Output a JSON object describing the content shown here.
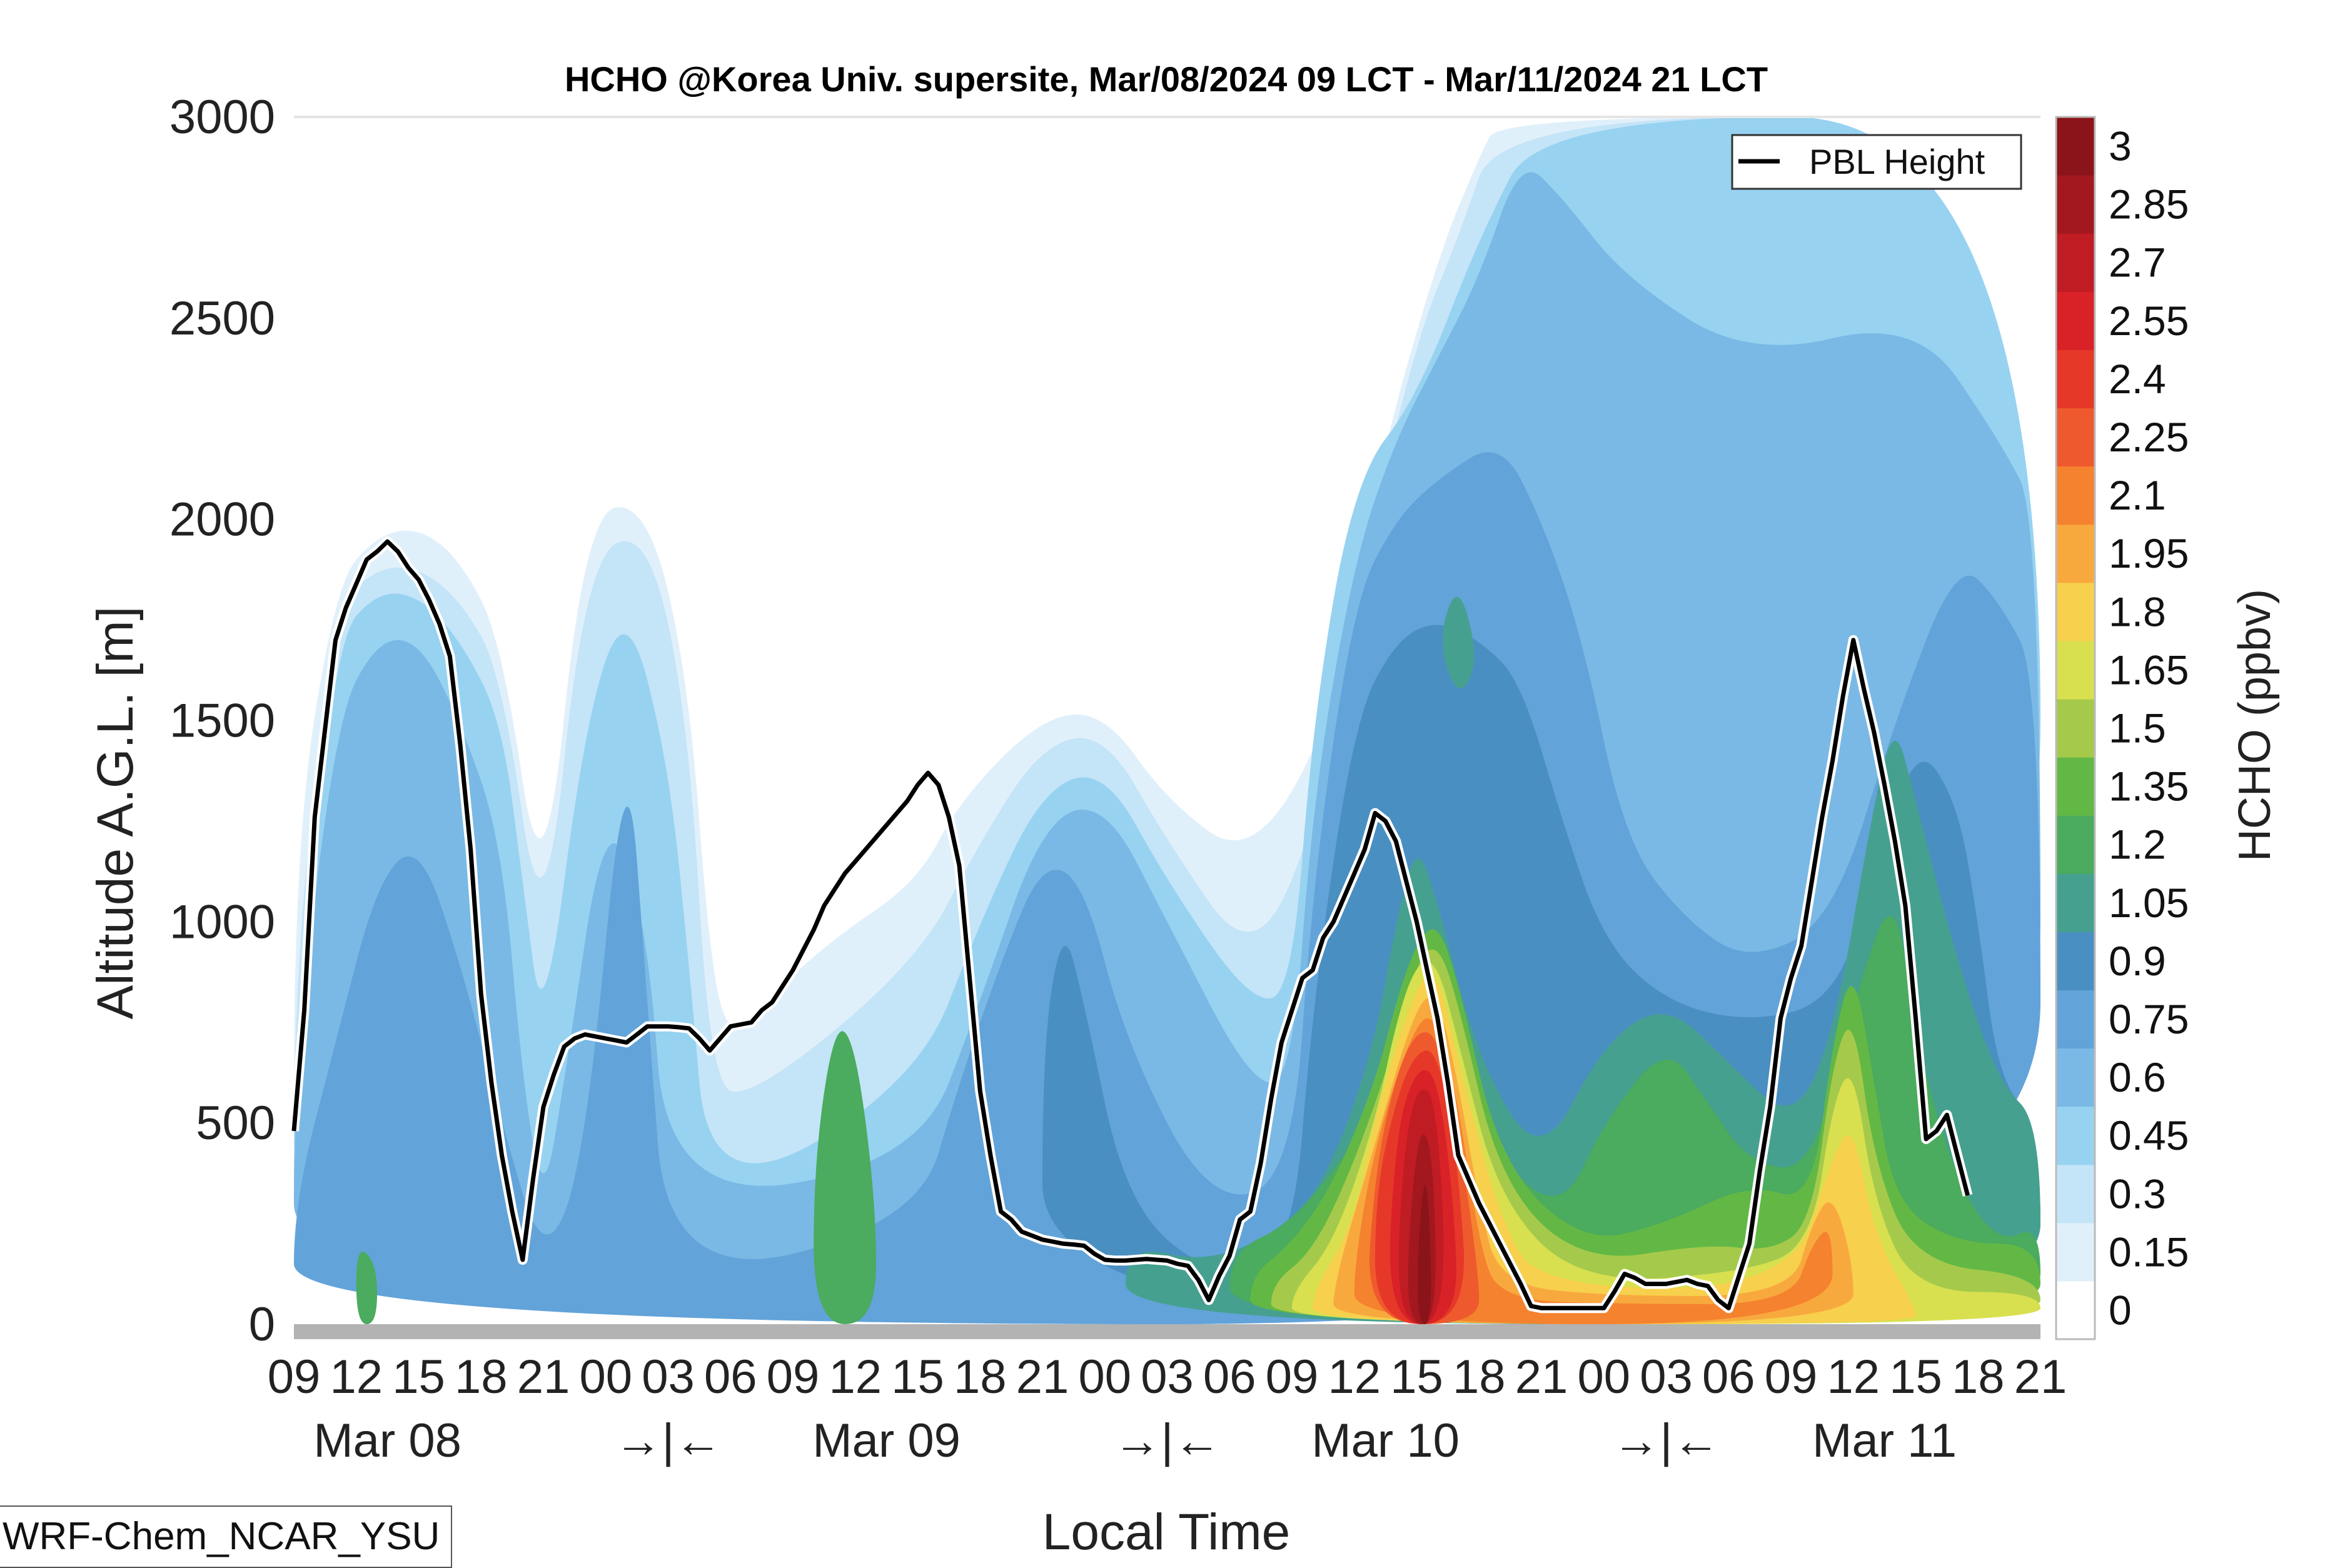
{
  "title": "HCHO @Korea Univ. supersite, Mar/08/2024 09 LCT - Mar/11/2024 21 LCT",
  "model_label": "WRF-Chem_NCAR_YSU",
  "chart_data": {
    "type": "heatmap",
    "title": "HCHO @Korea Univ. supersite, Mar/08/2024 09 LCT - Mar/11/2024 21 LCT",
    "xlabel": "Local Time",
    "ylabel": "Altitude A.G.L. [m]",
    "colorbar_label": "HCHO (ppbv)",
    "ylim": [
      0,
      3000
    ],
    "yticks": [
      "0",
      "500",
      "1000",
      "1500",
      "2000",
      "2500",
      "3000"
    ],
    "xticks": [
      "09",
      "12",
      "15",
      "18",
      "21",
      "00",
      "03",
      "06",
      "09",
      "12",
      "15",
      "18",
      "21",
      "00",
      "03",
      "06",
      "09",
      "12",
      "15",
      "18",
      "21",
      "00",
      "03",
      "06",
      "09",
      "12",
      "15",
      "18",
      "21"
    ],
    "day_labels": [
      "Mar 08",
      "→|←",
      "Mar 09",
      "→|←",
      "Mar 10",
      "→|←",
      "Mar 11"
    ],
    "colorbar_ticks": [
      "0",
      "0.15",
      "0.3",
      "0.45",
      "0.6",
      "0.75",
      "0.9",
      "1.05",
      "1.2",
      "1.35",
      "1.5",
      "1.65",
      "1.8",
      "1.95",
      "2.1",
      "2.25",
      "2.4",
      "2.55",
      "2.7",
      "2.85",
      "3"
    ],
    "colors": [
      "#ffffff",
      "#e0f0fb",
      "#c4e4f7",
      "#97d2f1",
      "#7ab9e5",
      "#62a3d9",
      "#4a8fc1",
      "#46a08f",
      "#4bab5e",
      "#63b845",
      "#a5ca4b",
      "#d8e050",
      "#f7d04d",
      "#f8a93e",
      "#f5822f",
      "#ee5a2d",
      "#e63829",
      "#d92128",
      "#c01c24",
      "#a3181f",
      "#8a141a"
    ],
    "legend": {
      "entries": [
        "PBL Height"
      ],
      "position": "top-right"
    },
    "pbl_height": {
      "name": "PBL Height",
      "x": [
        0,
        0.5,
        1,
        1.5,
        2,
        2.5,
        3,
        3.5,
        4,
        4.5,
        5,
        5.5,
        6,
        6.5,
        7,
        7.5,
        8,
        8.5,
        9,
        9.5,
        10,
        10.5,
        11,
        11.5,
        12,
        12.5,
        13,
        13.5,
        14,
        14.5,
        15,
        15.5,
        16,
        16.5,
        17,
        17.5,
        18,
        18.5,
        19,
        19.5,
        20,
        20.5,
        21,
        21.5,
        22,
        22.5,
        23,
        23.5,
        24,
        24.5,
        25,
        25.5,
        26,
        26.5,
        27,
        27.5,
        28,
        28.5,
        29,
        29.5,
        30,
        30.5,
        31,
        31.5,
        32,
        32.5,
        33,
        33.5,
        34,
        34.5,
        35,
        35.5,
        36,
        36.5,
        37,
        37.5,
        38,
        38.5,
        39,
        39.5,
        40,
        40.5,
        41,
        41.5,
        42,
        42.5,
        43,
        43.5,
        44,
        44.5,
        45,
        45.5,
        46,
        46.5,
        47,
        47.5,
        48,
        48.5,
        49,
        49.5,
        50,
        50.5,
        51,
        51.5,
        52,
        52.5,
        53,
        53.5,
        54,
        54.5,
        55,
        55.5,
        56,
        56.5,
        57,
        57.5,
        58,
        58.5,
        59,
        59.5,
        60,
        60.5,
        61,
        61.5,
        62,
        62.5,
        63,
        63.5,
        64,
        64.5,
        65,
        65.5,
        66,
        66.5,
        67,
        67.5,
        68,
        68.5,
        69,
        69.5,
        70,
        70.5,
        71,
        71.5,
        72,
        72.5,
        73,
        73.5,
        74,
        74.5,
        75,
        75.5,
        76,
        76.5,
        77,
        77.5,
        78,
        78.5,
        79,
        79.5,
        80,
        80.5,
        81,
        81.5,
        82,
        82.5,
        83,
        83.5,
        84
      ],
      "y": [
        480,
        780,
        1260,
        1480,
        1700,
        1780,
        1840,
        1900,
        1920,
        1945,
        1920,
        1880,
        1850,
        1800,
        1740,
        1660,
        1440,
        1180,
        820,
        600,
        420,
        280,
        160,
        360,
        540,
        620,
        690,
        710,
        720,
        715,
        710,
        705,
        700,
        720,
        740,
        740,
        740,
        738,
        735,
        710,
        680,
        710,
        740,
        745,
        750,
        780,
        800,
        840,
        880,
        930,
        980,
        1040,
        1080,
        1120,
        1150,
        1180,
        1210,
        1240,
        1270,
        1300,
        1340,
        1370,
        1340,
        1260,
        1140,
        860,
        580,
        420,
        280,
        260,
        230,
        220,
        210,
        205,
        200,
        198,
        195,
        175,
        160,
        158,
        158,
        160,
        162,
        160,
        158,
        150,
        145,
        110,
        60,
        120,
        170,
        260,
        280,
        400,
        560,
        700,
        780,
        860,
        880,
        960,
        1000,
        1060,
        1120,
        1180,
        1270,
        1250,
        1200,
        1100,
        1000,
        880,
        760,
        600,
        420,
        360,
        300,
        250,
        200,
        150,
        100,
        45,
        40,
        40,
        40,
        40,
        40,
        40,
        40,
        80,
        125,
        115,
        100,
        100,
        100,
        105,
        110,
        100,
        95,
        60,
        40,
        120,
        200,
        380,
        540,
        760,
        860,
        940,
        1100,
        1260,
        1400,
        1560,
        1700,
        1580,
        1470,
        1340,
        1200,
        1040,
        760,
        460,
        480,
        520,
        420,
        320
      ]
    }
  }
}
